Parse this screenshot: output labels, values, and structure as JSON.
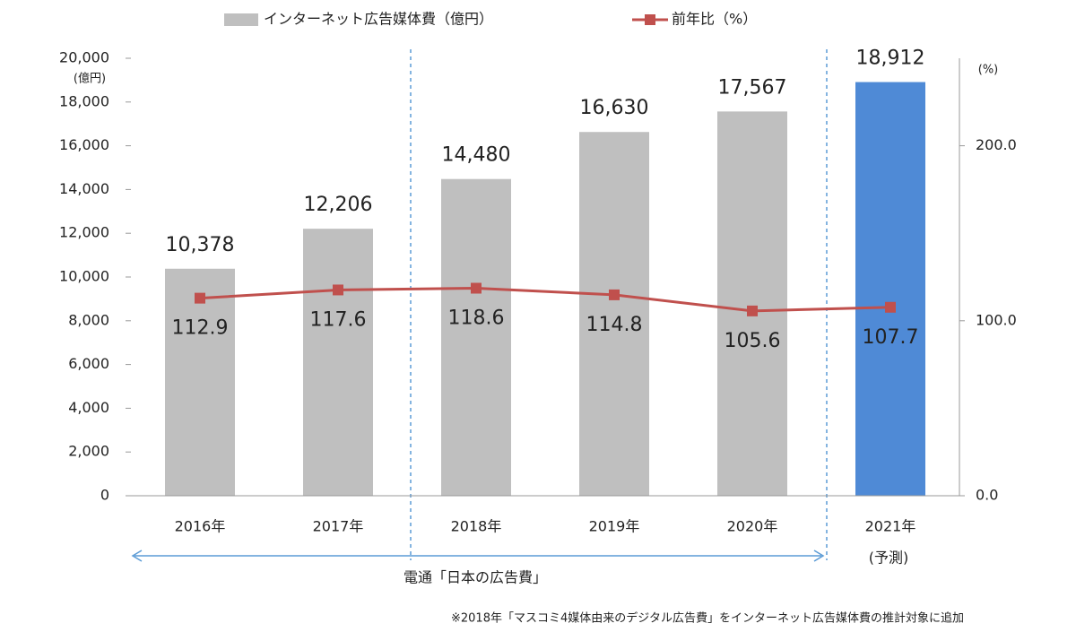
{
  "chart_data": {
    "type": "bar-line",
    "categories": [
      "2016年",
      "2017年",
      "2018年",
      "2019年",
      "2020年",
      "2021年"
    ],
    "series": [
      {
        "name": "インターネット広告媒体費（億円）",
        "color": "#bfbfbf",
        "colors": [
          "#bfbfbf",
          "#bfbfbf",
          "#bfbfbf",
          "#bfbfbf",
          "#bfbfbf",
          "#4f8ad6"
        ],
        "values": [
          10378,
          12206,
          14480,
          16630,
          17567,
          18912
        ],
        "value_labels": [
          "10,378",
          "12,206",
          "14,480",
          "16,630",
          "17,567",
          "18,912"
        ]
      },
      {
        "name": "前年比（%）",
        "color": "#c0504d",
        "axis": "y2",
        "values": [
          112.9,
          117.6,
          118.6,
          114.8,
          105.6,
          107.7
        ]
      }
    ],
    "ylim": [
      0,
      20000
    ],
    "yticks": [
      0,
      {
        "value": 2000,
        "label": "2,000"
      },
      {
        "value": 4000,
        "label": "4,000"
      },
      {
        "value": 6000,
        "label": "6,000"
      },
      {
        "value": 8000,
        "label": "8,000"
      },
      {
        "value": 10000,
        "label": "10,000"
      },
      {
        "value": 12000,
        "label": "12,000"
      },
      {
        "value": 14000,
        "label": "14,000"
      },
      {
        "value": 16000,
        "label": "16,000"
      },
      {
        "value": 18000,
        "label": "18,000"
      },
      {
        "value": 20000,
        "label": "20,000"
      }
    ],
    "y_unit": "(億円)",
    "y2lim": [
      0,
      250
    ],
    "y2ticks": [
      {
        "value": 0,
        "label": "0.0"
      },
      {
        "value": 100,
        "label": "100.0"
      },
      {
        "value": 200,
        "label": "200.0"
      }
    ],
    "y2_unit": "(%)",
    "forecast_note": "(予測)",
    "range_note": "電通「日本の広告費」",
    "footnote": "※2018年「マスコミ4媒体由来のデジタル広告費」をインターネット広告媒体費の推計対象に追加"
  }
}
